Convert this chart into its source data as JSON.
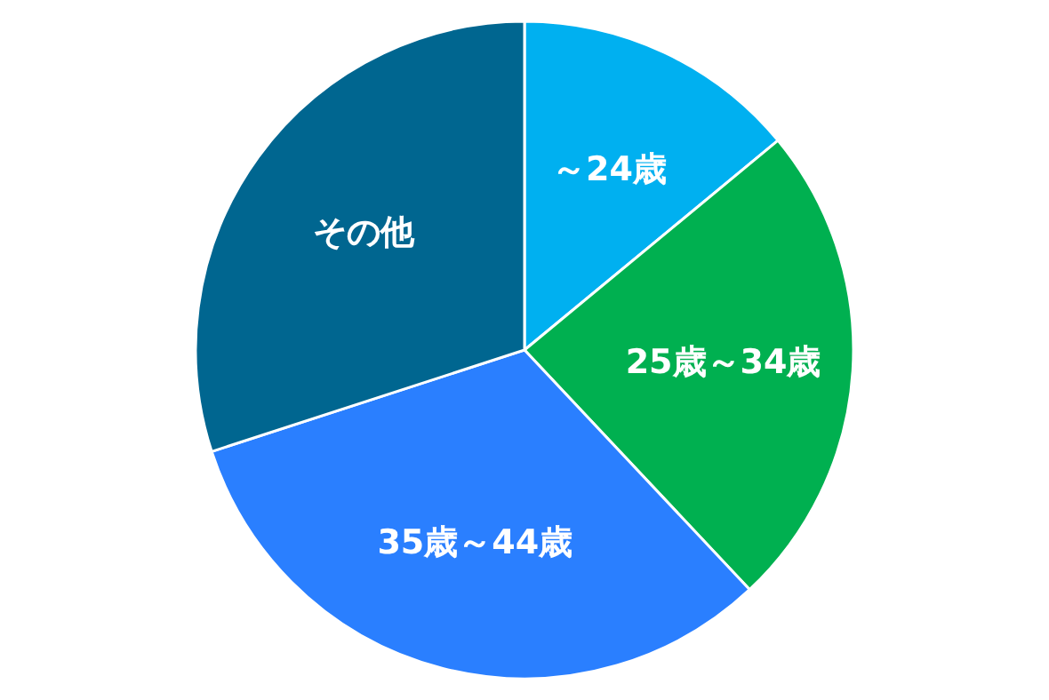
{
  "chart_data": {
    "type": "pie",
    "categories": [
      "～24歳",
      "25歳～34歳",
      "35歳～44歳",
      "その他"
    ],
    "values": [
      14,
      24,
      32,
      30
    ],
    "colors": [
      "#00b0f0",
      "#00b050",
      "#2a7fff",
      "#006690"
    ]
  }
}
